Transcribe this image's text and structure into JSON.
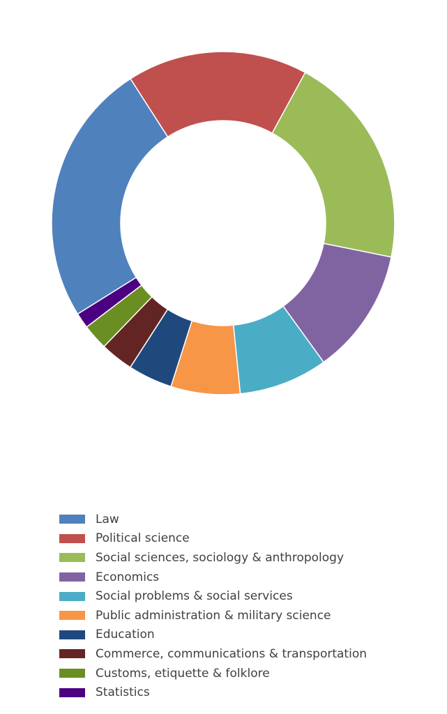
{
  "chart_data": {
    "type": "pie",
    "donut": true,
    "title": "",
    "legend_position": "bottom",
    "slices": [
      {
        "label": "Law",
        "value": 25.5,
        "color": "#4f81bd"
      },
      {
        "label": "Political science",
        "value": 17.5,
        "color": "#c0504d"
      },
      {
        "label": "Social sciences, sociology & anthropology",
        "value": 20.8,
        "color": "#9bbb59"
      },
      {
        "label": "Economics",
        "value": 12.2,
        "color": "#8064a2"
      },
      {
        "label": "Social problems & social services",
        "value": 8.6,
        "color": "#4bacc6"
      },
      {
        "label": "Public administration & military science",
        "value": 6.7,
        "color": "#f79646"
      },
      {
        "label": "Education",
        "value": 4.3,
        "color": "#1f497d"
      },
      {
        "label": "Commerce, communications & transportation",
        "value": 3.2,
        "color": "#632523"
      },
      {
        "label": "Customs, etiquette & folklore",
        "value": 2.5,
        "color": "#6b8e23"
      },
      {
        "label": "Statistics",
        "value": 1.5,
        "color": "#4b0082"
      }
    ]
  }
}
